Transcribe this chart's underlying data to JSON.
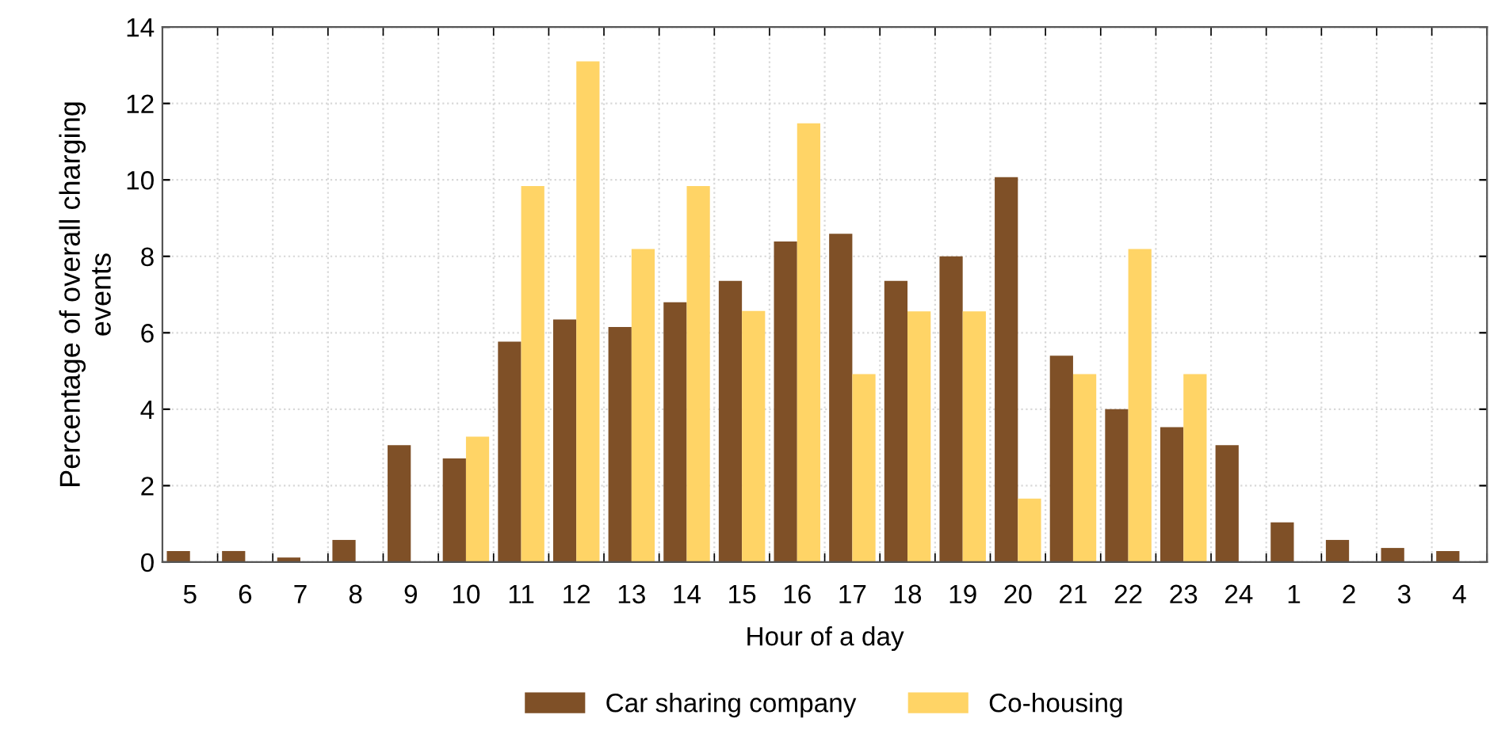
{
  "chart_data": {
    "type": "bar",
    "xlabel": "Hour of a day",
    "ylabel": "Percentage of overall charging\nevents",
    "categories": [
      "5",
      "6",
      "7",
      "8",
      "9",
      "10",
      "11",
      "12",
      "13",
      "14",
      "15",
      "16",
      "17",
      "18",
      "19",
      "20",
      "21",
      "22",
      "23",
      "24",
      "1",
      "2",
      "3",
      "4"
    ],
    "series": [
      {
        "name": "Car sharing company",
        "color": "#7f5027",
        "values": [
          0.29,
          0.29,
          0.12,
          0.58,
          3.06,
          2.71,
          5.77,
          6.35,
          6.15,
          6.8,
          7.36,
          8.39,
          8.59,
          7.36,
          8.0,
          10.07,
          5.4,
          4.0,
          3.53,
          3.06,
          1.04,
          0.58,
          0.37,
          0.29
        ]
      },
      {
        "name": "Co-housing",
        "color": "#ffd466",
        "values": [
          null,
          null,
          null,
          null,
          null,
          3.28,
          9.84,
          13.1,
          8.19,
          9.84,
          6.57,
          11.48,
          4.92,
          6.56,
          6.56,
          1.66,
          4.92,
          8.19,
          4.92,
          null,
          null,
          null,
          null,
          null
        ]
      }
    ],
    "ylim": [
      0,
      14
    ],
    "yticks": [
      0,
      2,
      4,
      6,
      8,
      10,
      12,
      14
    ],
    "grid": true,
    "legend": "bottom"
  }
}
